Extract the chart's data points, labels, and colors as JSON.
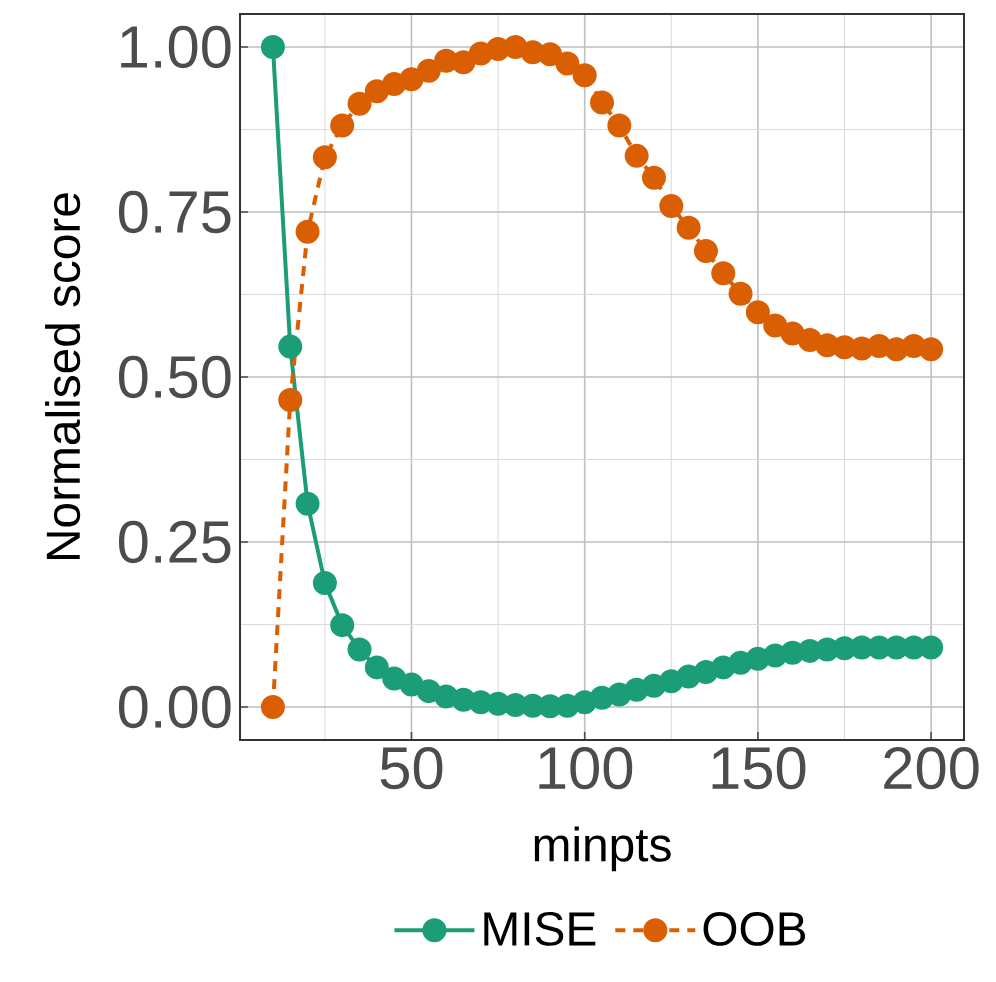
{
  "chart_data": {
    "type": "line",
    "xlabel": "minpts",
    "ylabel": "Normalised score",
    "x": [
      10,
      15,
      20,
      25,
      30,
      35,
      40,
      45,
      50,
      55,
      60,
      65,
      70,
      75,
      80,
      85,
      90,
      95,
      100,
      105,
      110,
      115,
      120,
      125,
      130,
      135,
      140,
      145,
      150,
      155,
      160,
      165,
      170,
      175,
      180,
      185,
      190,
      195,
      200
    ],
    "series": [
      {
        "name": "MISE",
        "color": "#1b9e77",
        "line_style": "solid",
        "values": [
          1.0,
          0.546,
          0.308,
          0.188,
          0.124,
          0.087,
          0.06,
          0.043,
          0.034,
          0.024,
          0.016,
          0.011,
          0.007,
          0.005,
          0.003,
          0.002,
          0.001,
          0.002,
          0.007,
          0.014,
          0.019,
          0.026,
          0.032,
          0.039,
          0.046,
          0.053,
          0.06,
          0.067,
          0.073,
          0.078,
          0.082,
          0.085,
          0.087,
          0.089,
          0.09,
          0.09,
          0.09,
          0.09,
          0.09
        ]
      },
      {
        "name": "OOB",
        "color": "#d95f02",
        "line_style": "dashed",
        "values": [
          0.0,
          0.465,
          0.72,
          0.833,
          0.881,
          0.914,
          0.933,
          0.944,
          0.951,
          0.964,
          0.979,
          0.977,
          0.99,
          0.997,
          1.0,
          0.992,
          0.989,
          0.975,
          0.957,
          0.916,
          0.881,
          0.835,
          0.802,
          0.759,
          0.726,
          0.691,
          0.657,
          0.626,
          0.598,
          0.578,
          0.566,
          0.556,
          0.548,
          0.545,
          0.543,
          0.547,
          0.542,
          0.547,
          0.542
        ]
      }
    ],
    "xlim": [
      0.5,
      209.5
    ],
    "ylim": [
      -0.05,
      1.05
    ],
    "xticks": [
      50,
      100,
      150,
      200
    ],
    "yticks": [
      {
        "value": 0,
        "label": "0.00"
      },
      {
        "value": 0.25,
        "label": "0.25"
      },
      {
        "value": 0.5,
        "label": "0.50"
      },
      {
        "value": 0.75,
        "label": "0.75"
      },
      {
        "value": 1,
        "label": "1.00"
      }
    ],
    "grid": true,
    "legend": "bottom",
    "marker": "circle"
  }
}
